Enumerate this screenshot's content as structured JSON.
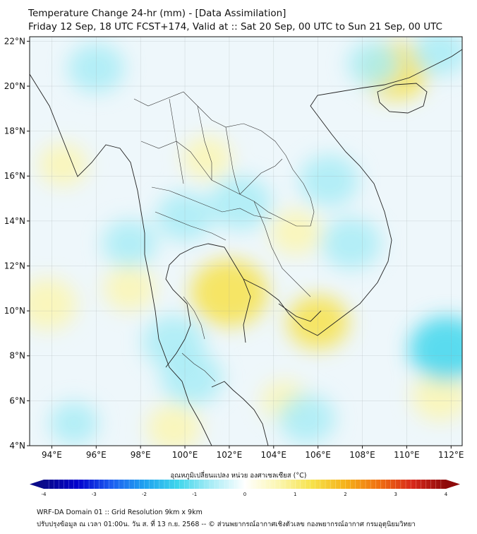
{
  "header": {
    "title_line1": "Temperature Change 24-hr (mm) - [Data Assimilation]",
    "title_line2": "Friday 12 Sep, 18 UTC FCST+174, Valid at :: Sat 20 Sep, 00 UTC to Sun 21 Sep, 00 UTC"
  },
  "map": {
    "lon_range": [
      93,
      112.5
    ],
    "lat_range": [
      4,
      22.2
    ],
    "lon_ticks": [
      "94°E",
      "96°E",
      "98°E",
      "100°E",
      "102°E",
      "104°E",
      "106°E",
      "108°E",
      "110°E",
      "112°E"
    ],
    "lat_ticks": [
      "22°N",
      "20°N",
      "18°N",
      "16°N",
      "14°N",
      "12°N",
      "10°N",
      "8°N",
      "6°N",
      "4°N"
    ],
    "anomalies": [
      {
        "lon": 102.0,
        "lat": 10.8,
        "value": 1.6
      },
      {
        "lon": 97.5,
        "lat": 11.0,
        "value": 0.6
      },
      {
        "lon": 93.8,
        "lat": 10.3,
        "value": 0.9
      },
      {
        "lon": 94.5,
        "lat": 16.5,
        "value": 0.5
      },
      {
        "lon": 106.0,
        "lat": 9.5,
        "value": 1.0
      },
      {
        "lon": 109.5,
        "lat": 20.7,
        "value": 1.2
      },
      {
        "lon": 105.0,
        "lat": 13.5,
        "value": 0.6
      },
      {
        "lon": 101.0,
        "lat": 16.8,
        "value": 0.5
      },
      {
        "lon": 99.5,
        "lat": 4.8,
        "value": 0.7
      },
      {
        "lon": 111.5,
        "lat": 6.2,
        "value": 0.8
      },
      {
        "lon": 104.5,
        "lat": 6.0,
        "value": 0.4
      },
      {
        "lon": 102.5,
        "lat": 14.8,
        "value": -1.0
      },
      {
        "lon": 100.0,
        "lat": 14.2,
        "value": -0.8
      },
      {
        "lon": 99.5,
        "lat": 8.6,
        "value": -1.0
      },
      {
        "lon": 100.3,
        "lat": 7.0,
        "value": -1.0
      },
      {
        "lon": 111.8,
        "lat": 8.3,
        "value": -1.5
      },
      {
        "lon": 107.5,
        "lat": 13.0,
        "value": -0.9
      },
      {
        "lon": 106.5,
        "lat": 15.8,
        "value": -0.9
      },
      {
        "lon": 97.5,
        "lat": 13.0,
        "value": -0.7
      },
      {
        "lon": 96.0,
        "lat": 20.8,
        "value": -0.8
      },
      {
        "lon": 105.5,
        "lat": 5.2,
        "value": -0.8
      },
      {
        "lon": 95.0,
        "lat": 5.0,
        "value": -0.5
      },
      {
        "lon": 108.5,
        "lat": 21.0,
        "value": -0.6
      },
      {
        "lon": 111.5,
        "lat": 21.5,
        "value": -0.7
      }
    ]
  },
  "colorbar": {
    "title": "อุณหภูมิเปลี่ยนแปลง หน่วย องศาเซลเซียส (°C)",
    "range": [
      -4,
      4
    ],
    "ticks": [
      "-4",
      "-3",
      "-2",
      "-1",
      "0",
      "1",
      "2",
      "3",
      "4"
    ],
    "colors": [
      "#0a0a8a",
      "#0000cd",
      "#1c5cf0",
      "#1fa2f0",
      "#3fd6ec",
      "#a8ecf6",
      "#ffffff",
      "#fbf6b0",
      "#f7e24a",
      "#f6b21a",
      "#f07010",
      "#d8281a",
      "#8e0a0a"
    ]
  },
  "footer": {
    "line1": "WRF-DA Domain 01 :: Grid Resolution 9km x 9km",
    "line2": "ปรับปรุงข้อมูล ณ เวลา 01:00น. วัน ส. ที่ 13 ก.ย. 2568 -- © ส่วนพยากรณ์อากาศเชิงตัวเลข กองพยากรณ์อากาศ กรมอุตุนิยมวิทยา"
  }
}
